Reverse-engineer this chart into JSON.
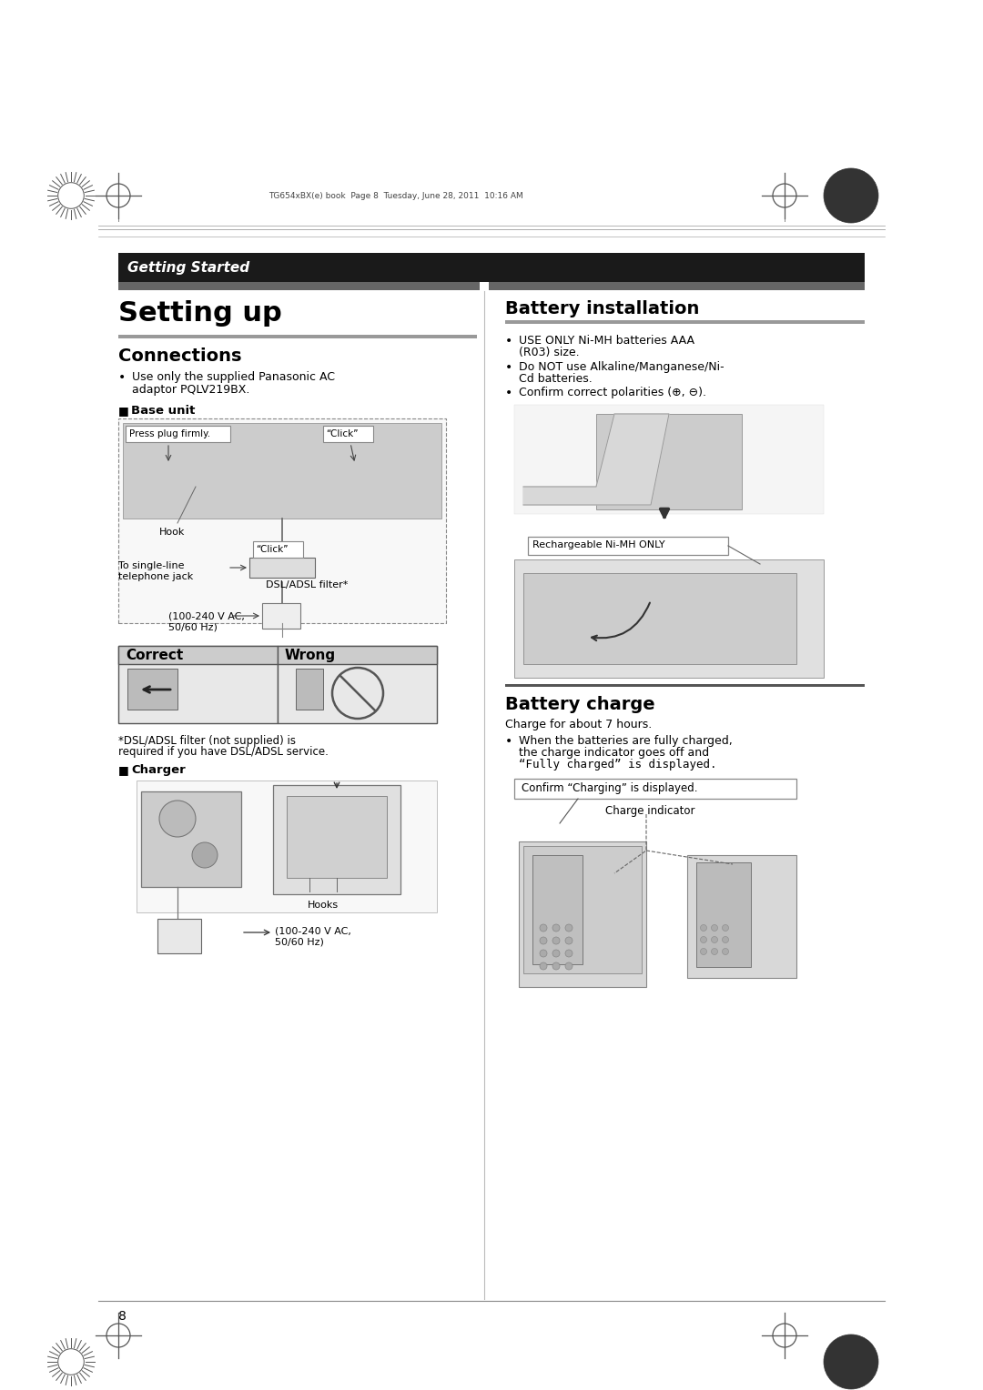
{
  "bg_color": "#ffffff",
  "page_width": 10.8,
  "page_height": 15.28,
  "header_bar_text": "Getting Started",
  "header_bar_bg": "#1a1a1a",
  "header_bar_fg": "#ffffff",
  "printer_mark_text": "TG654xBX(e) book  Page 8  Tuesday, June 28, 2011  10:16 AM",
  "setting_up_title": "Setting up",
  "connections_title": "Connections",
  "connections_bullet1_line1": "Use only the supplied Panasonic AC",
  "connections_bullet1_line2": "adaptor PQLV219BX.",
  "base_unit_label": "Base unit",
  "press_plug_label": "Press plug firmly.",
  "click_label1": "“Click”",
  "hook_label": "Hook",
  "click_label2": "“Click”",
  "single_line_label_line1": "To single-line",
  "single_line_label_line2": "telephone jack",
  "dsl_label": "DSL/ADSL filter*",
  "power_label_line1": "(100-240 V AC,",
  "power_label_line2": "50/60 Hz)",
  "correct_label": "Correct",
  "wrong_label": "Wrong",
  "dsl_footnote_line1": "*DSL/ADSL filter (not supplied) is",
  "dsl_footnote_line2": "required if you have DSL/ADSL service.",
  "charger_label": "Charger",
  "hooks_label": "Hooks",
  "charger_power_line1": "(100-240 V AC,",
  "charger_power_line2": "50/60 Hz)",
  "battery_install_title": "Battery installation",
  "battery_bullet1_line1": "USE ONLY Ni-MH batteries AAA",
  "battery_bullet1_line2": "(R03) size.",
  "battery_bullet2_line1": "Do NOT use Alkaline/Manganese/Ni-",
  "battery_bullet2_line2": "Cd batteries.",
  "battery_bullet3": "Confirm correct polarities (⊕, ⊖).",
  "rechargeable_label": "Rechargeable Ni-MH ONLY",
  "battery_charge_title": "Battery charge",
  "charge_text1": "Charge for about 7 hours.",
  "charge_bullet_line1": "When the batteries are fully charged,",
  "charge_bullet_line2": "the charge indicator goes off and",
  "charge_bullet_line3": "“Fully charged” is displayed.",
  "confirm_charging_label": "Confirm “Charging” is displayed.",
  "charge_indicator_label": "Charge indicator",
  "page_number": "8"
}
